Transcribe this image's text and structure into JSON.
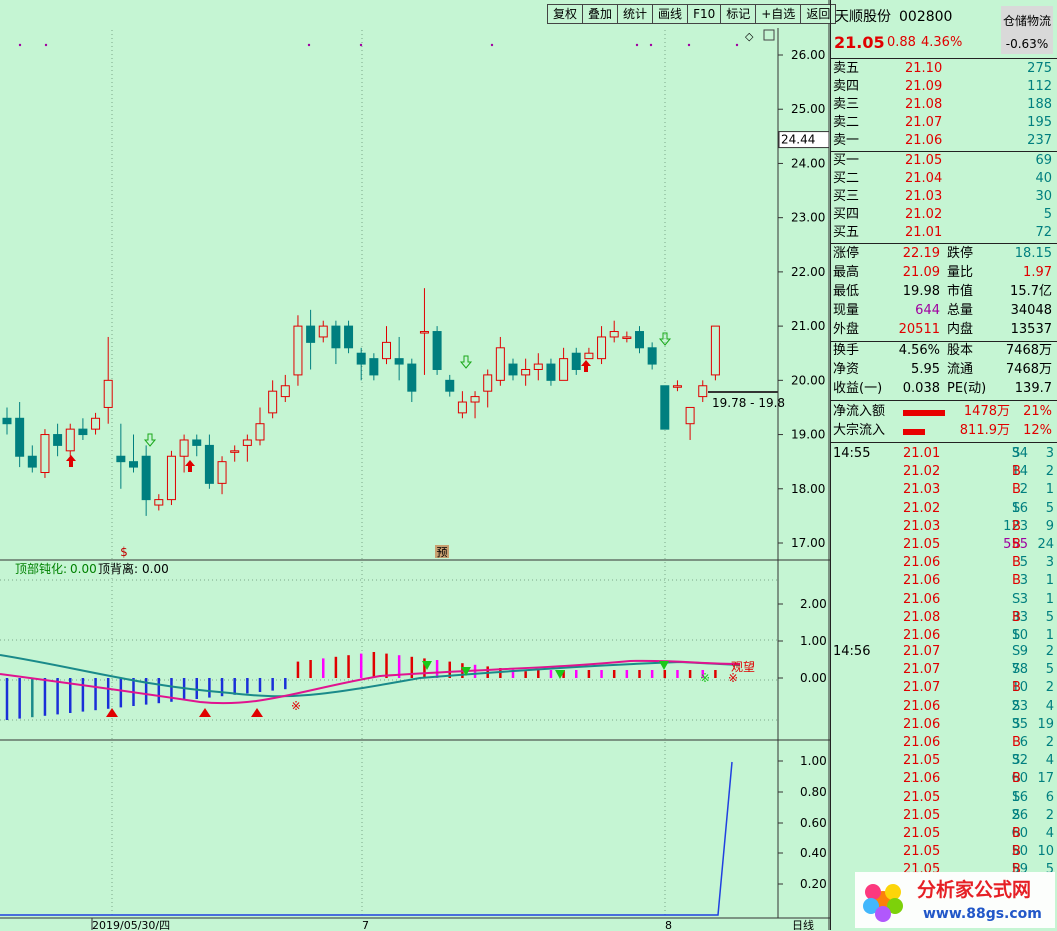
{
  "toolbar": [
    "复权",
    "叠加",
    "统计",
    "画线",
    "F10",
    "标记",
    "+自选",
    "返回"
  ],
  "stock": {
    "name": "天顺股份",
    "code": "002800",
    "sector": "仓储物流",
    "sector_change": "-0.63%",
    "price": "21.05",
    "change": "0.88",
    "change_pct": "4.36%"
  },
  "price_axis": [
    "26.00",
    "25.00",
    "24.44",
    "24.00",
    "23.00",
    "22.00",
    "21.00",
    "20.00",
    "19.00",
    "18.00",
    "17.00"
  ],
  "ind1": {
    "label_top": "顶部钝化:",
    "top_value": "0.00",
    "label_div": "顶背离:",
    "div_value": "0.00",
    "axis": [
      "2.00",
      "1.00",
      "0.00"
    ],
    "guan_wang": "观望"
  },
  "ind2": {
    "axis": [
      "1.00",
      "0.80",
      "0.60",
      "0.40",
      "0.20"
    ]
  },
  "dates": {
    "d1": "2019/05/30/四",
    "m7": "7",
    "m8": "8",
    "period": "日线"
  },
  "range_label": "19.78 - 19.8",
  "marker_s": "$",
  "marker_yu": "预",
  "order_book": {
    "asks": [
      [
        "卖五",
        "21.10",
        "275"
      ],
      [
        "卖四",
        "21.09",
        "112"
      ],
      [
        "卖三",
        "21.08",
        "188"
      ],
      [
        "卖二",
        "21.07",
        "195"
      ],
      [
        "卖一",
        "21.06",
        "237"
      ]
    ],
    "bids": [
      [
        "买一",
        "21.05",
        "69"
      ],
      [
        "买二",
        "21.04",
        "40"
      ],
      [
        "买三",
        "21.03",
        "30"
      ],
      [
        "买四",
        "21.02",
        "5"
      ],
      [
        "买五",
        "21.01",
        "72"
      ]
    ]
  },
  "stats": [
    [
      "涨停",
      "22.19",
      "跌停",
      "18.15"
    ],
    [
      "最高",
      "21.09",
      "量比",
      "1.97"
    ],
    [
      "最低",
      "19.98",
      "市值",
      "15.7亿"
    ],
    [
      "现量",
      "644",
      "总量",
      "34048"
    ],
    [
      "外盘",
      "20511",
      "内盘",
      "13537"
    ]
  ],
  "stats2": [
    [
      "换手",
      "4.56%",
      "股本",
      "7468万"
    ],
    [
      "净资",
      "5.95",
      "流通",
      "7468万"
    ],
    [
      "收益(一)",
      "0.038",
      "PE(动)",
      "139.7"
    ]
  ],
  "flows": [
    [
      "净流入额",
      "1478万",
      "21%"
    ],
    [
      "大宗流入",
      "811.9万",
      "12%"
    ]
  ],
  "ticks_1455": {
    "time": "14:55",
    "rows": [
      [
        "21.01",
        "34",
        "S",
        "3"
      ],
      [
        "21.02",
        "14",
        "B",
        "2"
      ],
      [
        "21.03",
        "2",
        "B",
        "1"
      ],
      [
        "21.02",
        "16",
        "S",
        "5"
      ],
      [
        "21.03",
        "123",
        "B",
        "9"
      ],
      [
        "21.05",
        "555",
        "B",
        "24"
      ],
      [
        "21.06",
        "5",
        "B",
        "3"
      ],
      [
        "21.06",
        "3",
        "B",
        "1"
      ],
      [
        "21.06",
        "3",
        "S",
        "1"
      ],
      [
        "21.08",
        "33",
        "B",
        "5"
      ],
      [
        "21.06",
        "10",
        "S",
        "1"
      ]
    ]
  },
  "ticks_1456": {
    "time": "14:56",
    "rows": [
      [
        "21.07",
        "9",
        "S",
        "2"
      ],
      [
        "21.07",
        "78",
        "S",
        "5"
      ],
      [
        "21.07",
        "10",
        "B",
        "2"
      ],
      [
        "21.06",
        "23",
        "S",
        "4"
      ],
      [
        "21.06",
        "35",
        "S",
        "19"
      ],
      [
        "21.06",
        "6",
        "B",
        "2"
      ],
      [
        "21.05",
        "32",
        "S",
        "4"
      ],
      [
        "21.06",
        "60",
        "B",
        "17"
      ],
      [
        "21.05",
        "16",
        "S",
        "6"
      ],
      [
        "21.05",
        "26",
        "S",
        "2"
      ],
      [
        "21.05",
        "60",
        "B",
        "4"
      ],
      [
        "21.05",
        "50",
        "B",
        "10"
      ],
      [
        "21.05",
        "59",
        "B",
        "5"
      ]
    ]
  },
  "colors": {
    "bg": "#c5f5d3",
    "up": "#e00000",
    "down": "#007f7f",
    "teal": "#1a8a8a",
    "pink": "#e0138f"
  },
  "watermark": {
    "line1": "分析家公式网",
    "line2": "www.88gs.com"
  },
  "chart_data": {
    "type": "candlestick",
    "ylim": [
      16.8,
      26.4
    ],
    "candles": [
      [
        19.3,
        19.2,
        19.0,
        19.5
      ],
      [
        19.3,
        18.6,
        18.4,
        19.6
      ],
      [
        18.6,
        18.4,
        18.3,
        18.8
      ],
      [
        18.3,
        19.0,
        18.2,
        19.1
      ],
      [
        19.0,
        18.8,
        18.6,
        19.2
      ],
      [
        18.7,
        19.1,
        18.6,
        19.2
      ],
      [
        19.1,
        19.0,
        18.9,
        19.3
      ],
      [
        19.1,
        19.3,
        19.0,
        19.4
      ],
      [
        19.5,
        20.0,
        19.2,
        20.8
      ],
      [
        18.6,
        18.5,
        18.0,
        19.2
      ],
      [
        18.5,
        18.4,
        18.3,
        19.0
      ],
      [
        18.6,
        17.8,
        17.5,
        18.8
      ],
      [
        17.7,
        17.8,
        17.6,
        17.9
      ],
      [
        17.8,
        18.6,
        17.7,
        18.7
      ],
      [
        18.6,
        18.9,
        18.3,
        19.0
      ],
      [
        18.9,
        18.8,
        18.6,
        19.0
      ],
      [
        18.8,
        18.1,
        18.0,
        19.0
      ],
      [
        18.1,
        18.5,
        17.9,
        18.6
      ],
      [
        18.7,
        18.7,
        18.5,
        18.8
      ],
      [
        18.8,
        18.9,
        18.5,
        19.0
      ],
      [
        18.9,
        19.2,
        18.8,
        19.5
      ],
      [
        19.4,
        19.8,
        19.3,
        20.0
      ],
      [
        19.7,
        19.9,
        19.6,
        20.1
      ],
      [
        20.1,
        21.0,
        19.9,
        21.2
      ],
      [
        21.0,
        20.7,
        20.2,
        21.3
      ],
      [
        20.8,
        21.0,
        20.7,
        21.1
      ],
      [
        21.0,
        20.6,
        20.3,
        21.1
      ],
      [
        21.0,
        20.6,
        20.5,
        21.1
      ],
      [
        20.5,
        20.3,
        20.0,
        20.6
      ],
      [
        20.4,
        20.1,
        20.0,
        20.5
      ],
      [
        20.4,
        20.7,
        20.3,
        21.0
      ],
      [
        20.4,
        20.3,
        20.0,
        20.8
      ],
      [
        20.3,
        19.8,
        19.6,
        20.4
      ],
      [
        20.9,
        20.9,
        20.1,
        21.7
      ],
      [
        20.9,
        20.2,
        20.1,
        21.0
      ],
      [
        20.0,
        19.8,
        19.7,
        20.1
      ],
      [
        19.4,
        19.6,
        19.3,
        19.8
      ],
      [
        19.6,
        19.7,
        19.3,
        19.8
      ],
      [
        19.8,
        20.1,
        19.5,
        20.2
      ],
      [
        20.0,
        20.6,
        19.9,
        20.8
      ],
      [
        20.3,
        20.1,
        20.0,
        20.4
      ],
      [
        20.1,
        20.2,
        19.9,
        20.4
      ],
      [
        20.2,
        20.3,
        20.0,
        20.5
      ],
      [
        20.3,
        20.0,
        19.9,
        20.4
      ],
      [
        20.0,
        20.4,
        20.0,
        20.6
      ],
      [
        20.5,
        20.2,
        20.1,
        20.6
      ],
      [
        20.4,
        20.5,
        20.4,
        20.6
      ],
      [
        20.4,
        20.8,
        20.3,
        21.0
      ],
      [
        20.8,
        20.9,
        20.7,
        21.1
      ],
      [
        20.8,
        20.8,
        20.7,
        20.9
      ],
      [
        20.9,
        20.6,
        20.5,
        21.0
      ],
      [
        20.6,
        20.3,
        20.2,
        20.7
      ],
      [
        19.9,
        19.1,
        19.1,
        19.9
      ],
      [
        19.9,
        19.9,
        19.8,
        20.0
      ],
      [
        19.2,
        19.5,
        18.9,
        19.5
      ],
      [
        19.7,
        19.9,
        19.6,
        20.0
      ],
      [
        20.1,
        21.0,
        20.0,
        21.0
      ]
    ]
  }
}
